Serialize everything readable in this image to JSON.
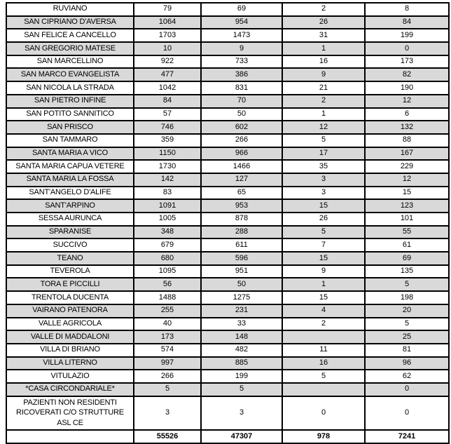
{
  "colors": {
    "shaded_row_background": "#d9d9d9",
    "plain_row_background": "#ffffff",
    "border": "#000000",
    "text": "#000000"
  },
  "table": {
    "rows": [
      {
        "label": "RUVIANO",
        "values": [
          "79",
          "69",
          "2",
          "8"
        ],
        "shaded": false
      },
      {
        "label": "SAN CIPRIANO D'AVERSA",
        "values": [
          "1064",
          "954",
          "26",
          "84"
        ],
        "shaded": true
      },
      {
        "label": "SAN FELICE A CANCELLO",
        "values": [
          "1703",
          "1473",
          "31",
          "199"
        ],
        "shaded": false
      },
      {
        "label": "SAN GREGORIO MATESE",
        "values": [
          "10",
          "9",
          "1",
          "0"
        ],
        "shaded": true
      },
      {
        "label": "SAN MARCELLINO",
        "values": [
          "922",
          "733",
          "16",
          "173"
        ],
        "shaded": false
      },
      {
        "label": "SAN MARCO EVANGELISTA",
        "values": [
          "477",
          "386",
          "9",
          "82"
        ],
        "shaded": true
      },
      {
        "label": "SAN NICOLA LA STRADA",
        "values": [
          "1042",
          "831",
          "21",
          "190"
        ],
        "shaded": false
      },
      {
        "label": "SAN PIETRO INFINE",
        "values": [
          "84",
          "70",
          "2",
          "12"
        ],
        "shaded": true
      },
      {
        "label": "SAN POTITO SANNITICO",
        "values": [
          "57",
          "50",
          "1",
          "6"
        ],
        "shaded": false
      },
      {
        "label": "SAN PRISCO",
        "values": [
          "746",
          "602",
          "12",
          "132"
        ],
        "shaded": true
      },
      {
        "label": "SAN TAMMARO",
        "values": [
          "359",
          "266",
          "5",
          "88"
        ],
        "shaded": false
      },
      {
        "label": "SANTA MARIA A VICO",
        "values": [
          "1150",
          "966",
          "17",
          "167"
        ],
        "shaded": true
      },
      {
        "label": "SANTA MARIA CAPUA VETERE",
        "values": [
          "1730",
          "1466",
          "35",
          "229"
        ],
        "shaded": false
      },
      {
        "label": "SANTA MARIA LA FOSSA",
        "values": [
          "142",
          "127",
          "3",
          "12"
        ],
        "shaded": true
      },
      {
        "label": "SANT'ANGELO D'ALIFE",
        "values": [
          "83",
          "65",
          "3",
          "15"
        ],
        "shaded": false
      },
      {
        "label": "SANT'ARPINO",
        "values": [
          "1091",
          "953",
          "15",
          "123"
        ],
        "shaded": true
      },
      {
        "label": "SESSA AURUNCA",
        "values": [
          "1005",
          "878",
          "26",
          "101"
        ],
        "shaded": false
      },
      {
        "label": "SPARANISE",
        "values": [
          "348",
          "288",
          "5",
          "55"
        ],
        "shaded": true
      },
      {
        "label": "SUCCIVO",
        "values": [
          "679",
          "611",
          "7",
          "61"
        ],
        "shaded": false
      },
      {
        "label": "TEANO",
        "values": [
          "680",
          "596",
          "15",
          "69"
        ],
        "shaded": true
      },
      {
        "label": "TEVEROLA",
        "values": [
          "1095",
          "951",
          "9",
          "135"
        ],
        "shaded": false
      },
      {
        "label": "TORA E PICCILLI",
        "values": [
          "56",
          "50",
          "1",
          "5"
        ],
        "shaded": true
      },
      {
        "label": "TRENTOLA DUCENTA",
        "values": [
          "1488",
          "1275",
          "15",
          "198"
        ],
        "shaded": false
      },
      {
        "label": "VAIRANO PATENORA",
        "values": [
          "255",
          "231",
          "4",
          "20"
        ],
        "shaded": true
      },
      {
        "label": "VALLE AGRICOLA",
        "values": [
          "40",
          "33",
          "2",
          "5"
        ],
        "shaded": false
      },
      {
        "label": "VALLE DI MADDALONI",
        "values": [
          "173",
          "148",
          "",
          "25"
        ],
        "shaded": true
      },
      {
        "label": "VILLA DI BRIANO",
        "values": [
          "574",
          "482",
          "11",
          "81"
        ],
        "shaded": false
      },
      {
        "label": "VILLA LITERNO",
        "values": [
          "997",
          "885",
          "16",
          "96"
        ],
        "shaded": true
      },
      {
        "label": "VITULAZIO",
        "values": [
          "266",
          "199",
          "5",
          "62"
        ],
        "shaded": false
      },
      {
        "label": "*CASA CIRCONDARIALE*",
        "values": [
          "5",
          "5",
          "",
          "0"
        ],
        "shaded": true
      },
      {
        "label": "PAZIENTI NON RESIDENTI RICOVERATI C/O STRUTTURE ASL CE",
        "values": [
          "3",
          "3",
          "0",
          "0"
        ],
        "shaded": false,
        "tall": true
      }
    ],
    "totals": {
      "label": "",
      "values": [
        "55526",
        "47307",
        "978",
        "7241"
      ]
    }
  }
}
